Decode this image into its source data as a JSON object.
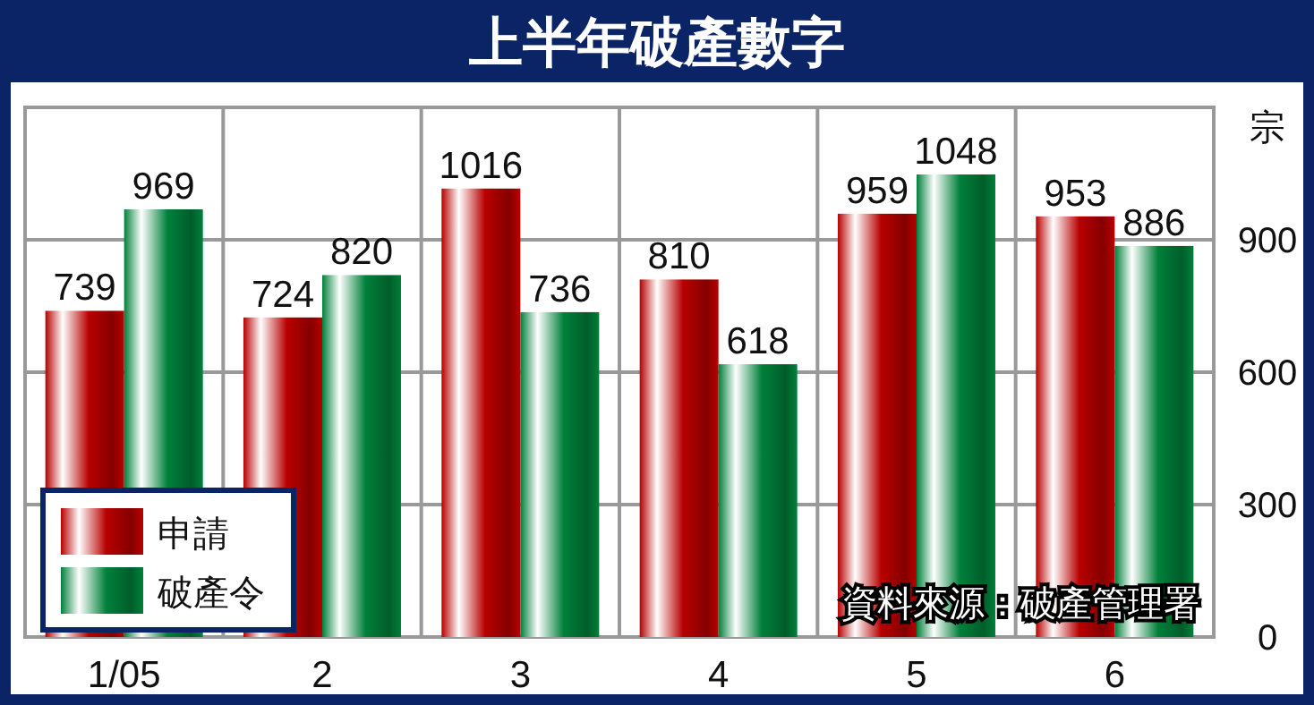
{
  "chart_data": {
    "type": "bar",
    "title": "上半年破產數字",
    "ylabel": "宗",
    "categories": [
      "1/05",
      "2",
      "3",
      "4",
      "5",
      "6"
    ],
    "series": [
      {
        "name": "申請",
        "color": "#b80000",
        "values": [
          739,
          724,
          1016,
          810,
          959,
          953
        ]
      },
      {
        "name": "破產令",
        "color": "#00803a",
        "values": [
          969,
          820,
          736,
          618,
          1048,
          886
        ]
      }
    ],
    "ylim": [
      0,
      1200
    ],
    "yticks": [
      0,
      300,
      600,
      900
    ],
    "grid": true,
    "legend": "bottom left",
    "data_labels": true,
    "annotations": [
      "資料來源：破產管理署"
    ]
  }
}
